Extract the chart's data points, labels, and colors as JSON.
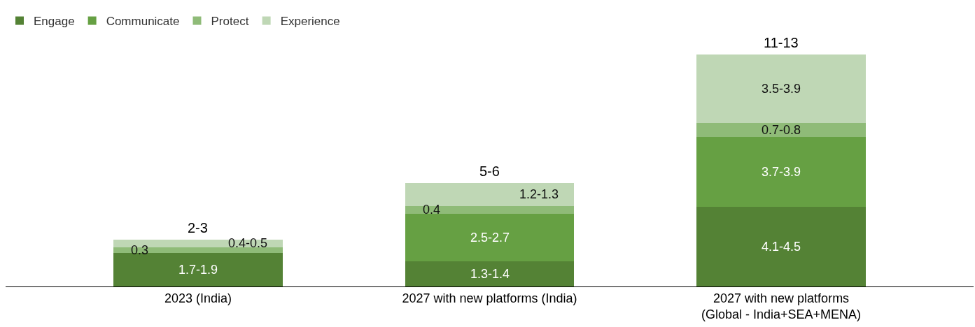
{
  "chart_data": {
    "type": "bar",
    "stacked": true,
    "legend": "top left",
    "tick_labels": "x",
    "categories": [
      "2023 (India)",
      "2027 with new platforms (India)",
      "2027 with new platforms\n(Global - India+SEA+MENA)"
    ],
    "series": [
      {
        "name": "Engage",
        "color": "#548235",
        "values": [
          1.8,
          1.35,
          4.3
        ],
        "value_labels": [
          "1.7-1.9",
          "1.3-1.4",
          "4.1-4.5"
        ]
      },
      {
        "name": "Communicate",
        "color": "#66a043",
        "values": [
          null,
          2.6,
          3.8
        ],
        "value_labels": [
          null,
          "2.5-2.7",
          "3.7-3.9"
        ]
      },
      {
        "name": "Protect",
        "color": "#8fbb78",
        "values": [
          0.3,
          0.4,
          0.75
        ],
        "value_labels": [
          "0.3",
          "0.4",
          "0.7-0.8"
        ]
      },
      {
        "name": "Experience",
        "color": "#bfd7b5",
        "values": [
          0.45,
          1.25,
          3.7
        ],
        "value_labels": [
          "0.4-0.5",
          "1.2-1.3",
          "3.5-3.9"
        ]
      }
    ],
    "totals": [
      "2-3",
      "5-6",
      "11-13"
    ]
  }
}
